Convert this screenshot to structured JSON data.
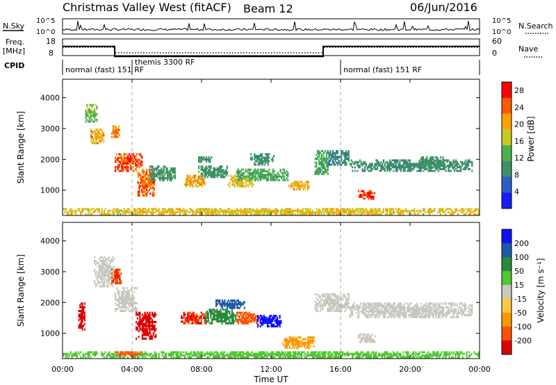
{
  "header": {
    "title": "Christmas Valley West (fitACF)",
    "beam": "Beam 12",
    "date": "06/Jun/2016"
  },
  "status_panels": {
    "nsky_label": "N.Sky",
    "nsearch_label": "N.Search",
    "noise_left_ticks": [
      "10^5",
      "10^0"
    ],
    "noise_right_ticks": [
      "10^5",
      "10^0"
    ],
    "freq_label_line1": "Freq.",
    "freq_label_line2": "[MHz]",
    "freq_ticks": [
      "18",
      "8"
    ],
    "nave_label": "Nave",
    "nave_ticks": [
      "60",
      "0"
    ],
    "cpid_label": "CPID",
    "cpid_modes": [
      {
        "text": "normal (fast) 151 RF",
        "start_hour": 0
      },
      {
        "text": "themis 3300 RF",
        "start_hour": 4
      },
      {
        "text": "normal (fast) 151 RF",
        "start_hour": 16
      }
    ],
    "freq_series": {
      "hours": [
        0,
        3,
        3,
        15,
        15,
        24
      ],
      "mhz": [
        16,
        16,
        10,
        10,
        16,
        16
      ]
    },
    "nave_series": {
      "hours": [
        0,
        3,
        3,
        15,
        15,
        24
      ],
      "value": [
        30,
        30,
        10,
        10,
        30,
        30
      ]
    }
  },
  "chart_data": [
    {
      "type": "heatmap",
      "name": "power",
      "ylabel": "Slant Range [km]",
      "yticks": [
        1000,
        2000,
        3000,
        4000
      ],
      "ylim": [
        180,
        4600
      ],
      "xlim": [
        0,
        24
      ],
      "xticks": [
        "00:00",
        "04:00",
        "08:00",
        "12:00",
        "16:00",
        "20:00",
        "00:00"
      ],
      "colorbar": {
        "label": "Power [dB]",
        "ticks": [
          4,
          8,
          12,
          16,
          20,
          24,
          28
        ],
        "range": [
          0,
          30
        ],
        "colors": [
          "#1a1aff",
          "#2a5fc8",
          "#3d8f6a",
          "#4fb050",
          "#c8c820",
          "#ffa000",
          "#ff5a00",
          "#ff0000"
        ]
      },
      "echo_regions": [
        {
          "t0": 0.0,
          "t1": 24.0,
          "r0": 200,
          "r1": 420,
          "value": 18
        },
        {
          "t0": 1.3,
          "t1": 2.0,
          "r0": 3200,
          "r1": 3800,
          "value": 14
        },
        {
          "t0": 1.6,
          "t1": 2.4,
          "r0": 2500,
          "r1": 3000,
          "value": 20
        },
        {
          "t0": 2.8,
          "t1": 3.3,
          "r0": 2700,
          "r1": 3100,
          "value": 22
        },
        {
          "t0": 3.0,
          "t1": 4.6,
          "r0": 1600,
          "r1": 2200,
          "value": 26
        },
        {
          "t0": 4.3,
          "t1": 5.3,
          "r0": 800,
          "r1": 1700,
          "value": 24
        },
        {
          "t0": 5.0,
          "t1": 6.5,
          "r0": 1300,
          "r1": 1800,
          "value": 10
        },
        {
          "t0": 7.0,
          "t1": 8.2,
          "r0": 1100,
          "r1": 1500,
          "value": 20
        },
        {
          "t0": 7.8,
          "t1": 9.5,
          "r0": 1400,
          "r1": 1800,
          "value": 10
        },
        {
          "t0": 9.5,
          "t1": 11.0,
          "r0": 1100,
          "r1": 1500,
          "value": 18
        },
        {
          "t0": 10.0,
          "t1": 13.0,
          "r0": 1300,
          "r1": 1700,
          "value": 12
        },
        {
          "t0": 13.0,
          "t1": 14.2,
          "r0": 1000,
          "r1": 1300,
          "value": 20
        },
        {
          "t0": 10.8,
          "t1": 12.2,
          "r0": 1800,
          "r1": 2200,
          "value": 9
        },
        {
          "t0": 7.8,
          "t1": 8.6,
          "r0": 1900,
          "r1": 2100,
          "value": 10
        },
        {
          "t0": 14.5,
          "t1": 15.3,
          "r0": 1500,
          "r1": 2300,
          "value": 12
        },
        {
          "t0": 15.3,
          "t1": 16.5,
          "r0": 1800,
          "r1": 2300,
          "value": 8
        },
        {
          "t0": 16.5,
          "t1": 23.6,
          "r0": 1600,
          "r1": 2000,
          "value": 9
        },
        {
          "t0": 17.0,
          "t1": 18.0,
          "r0": 700,
          "r1": 1000,
          "value": 26
        },
        {
          "t0": 20.5,
          "t1": 22.0,
          "r0": 1700,
          "r1": 2100,
          "value": 10
        }
      ]
    },
    {
      "type": "heatmap",
      "name": "velocity",
      "ylabel": "Slant Range [km]",
      "yticks": [
        1000,
        2000,
        3000,
        4000
      ],
      "ylim": [
        180,
        4600
      ],
      "xlim": [
        0,
        24
      ],
      "xlabel": "Time UT",
      "xticks": [
        "00:00",
        "04:00",
        "08:00",
        "12:00",
        "16:00",
        "20:00",
        "00:00"
      ],
      "colorbar": {
        "label": "Velocity [m s⁻¹]",
        "ticks": [
          "-200",
          "-100",
          "-50",
          "-15",
          "15",
          "50",
          "100",
          "200"
        ],
        "colors": [
          "#e00000",
          "#ff5000",
          "#ff9800",
          "#ffc840",
          "#c8c8c0",
          "#50c830",
          "#2a8a40",
          "#1f5aa8",
          "#1010ff"
        ]
      },
      "echo_regions": [
        {
          "t0": 0.0,
          "t1": 24.0,
          "r0": 200,
          "r1": 420,
          "value": 30
        },
        {
          "t0": 0.9,
          "t1": 1.3,
          "r0": 1100,
          "r1": 2000,
          "value": -250
        },
        {
          "t0": 1.8,
          "t1": 3.0,
          "r0": 2500,
          "r1": 3500,
          "value": 0
        },
        {
          "t0": 2.8,
          "t1": 3.4,
          "r0": 2600,
          "r1": 3100,
          "value": -180
        },
        {
          "t0": 3.0,
          "t1": 4.3,
          "r0": 1700,
          "r1": 2500,
          "value": 0
        },
        {
          "t0": 4.2,
          "t1": 5.4,
          "r0": 800,
          "r1": 1700,
          "value": -250
        },
        {
          "t0": 6.8,
          "t1": 8.3,
          "r0": 1300,
          "r1": 1700,
          "value": -200
        },
        {
          "t0": 8.2,
          "t1": 10.0,
          "r0": 1300,
          "r1": 1800,
          "value": 60
        },
        {
          "t0": 10.0,
          "t1": 11.2,
          "r0": 1300,
          "r1": 1700,
          "value": -150
        },
        {
          "t0": 11.2,
          "t1": 12.6,
          "r0": 1200,
          "r1": 1600,
          "value": 250
        },
        {
          "t0": 8.8,
          "t1": 10.5,
          "r0": 1800,
          "r1": 2100,
          "value": 120
        },
        {
          "t0": 12.6,
          "t1": 14.5,
          "r0": 500,
          "r1": 900,
          "value": -60
        },
        {
          "t0": 14.5,
          "t1": 16.5,
          "r0": 1700,
          "r1": 2300,
          "value": 0
        },
        {
          "t0": 16.5,
          "t1": 23.6,
          "r0": 1500,
          "r1": 2000,
          "value": 0
        },
        {
          "t0": 17.0,
          "t1": 18.0,
          "r0": 700,
          "r1": 1000,
          "value": 0
        },
        {
          "t0": 3.0,
          "t1": 4.6,
          "r0": 250,
          "r1": 420,
          "value": -120
        }
      ]
    }
  ]
}
